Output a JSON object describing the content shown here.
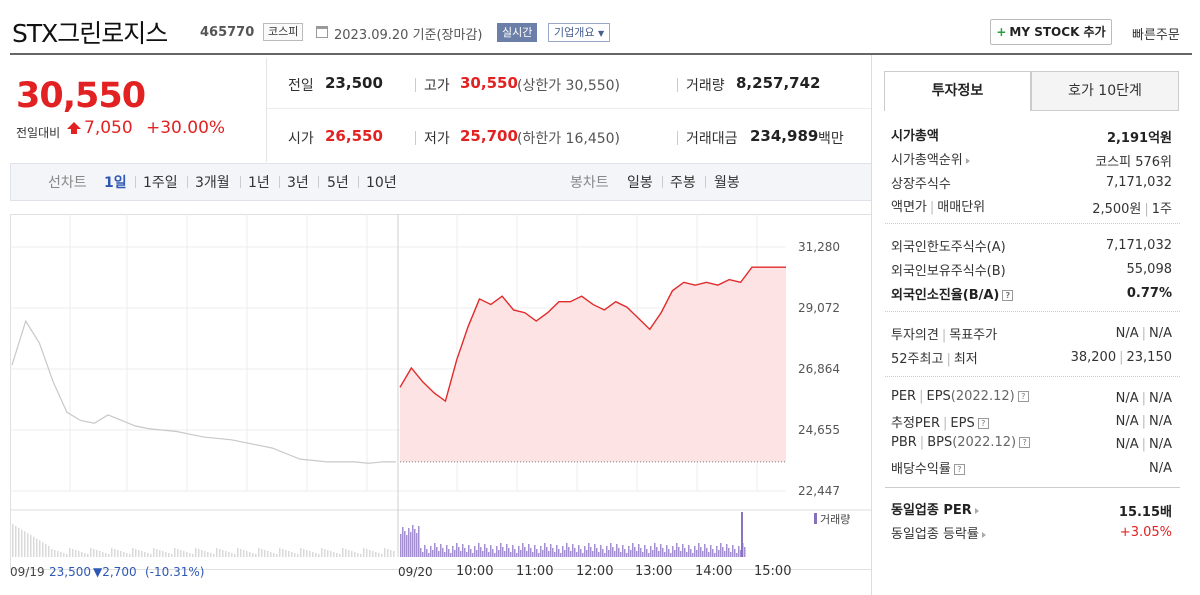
{
  "header": {
    "title": "STX그린로지스",
    "code": "465770",
    "market": "코스피",
    "date_text": "2023.09.20 기준(장마감)",
    "realtime": "실시간",
    "company_info": "기업개요",
    "mystock": "MY STOCK 추가",
    "quick_order": "빠른주문"
  },
  "price": {
    "current": "30,550",
    "change_label": "전일대비",
    "change_amount": "7,050",
    "change_pct": "+30.00%"
  },
  "quote": {
    "prev_label": "전일",
    "prev": "23,500",
    "high_label": "고가",
    "high": "30,550",
    "upper_limit": "(상한가 30,550)",
    "volume_label": "거래량",
    "volume": "8,257,742",
    "open_label": "시가",
    "open": "26,550",
    "low_label": "저가",
    "low": "25,700",
    "lower_limit": "(하한가 16,450)",
    "amount_label": "거래대금",
    "amount": "234,989",
    "amount_unit": "백만"
  },
  "tabs": {
    "line_chart": "선차트",
    "periods": [
      "1일",
      "1주일",
      "3개월",
      "1년",
      "3년",
      "5년",
      "10년"
    ],
    "candle_chart": "봉차트",
    "candles": [
      "일봉",
      "주봉",
      "월봉"
    ]
  },
  "chart_data": {
    "type": "line",
    "y_ticks": [
      "31,280",
      "29,072",
      "26,864",
      "24,655",
      "22,447"
    ],
    "ylim": [
      22447,
      31280
    ],
    "x_labels": [
      "09/20",
      "10:00",
      "11:00",
      "12:00",
      "13:00",
      "14:00",
      "15:00"
    ],
    "prev_day_label": "09/19",
    "prev_day_close": "23,500",
    "prev_day_change": "2,700",
    "prev_day_pct": "(-10.31%)",
    "volume_legend": "거래량",
    "base_price": 23500,
    "prev_series": [
      27000,
      28600,
      27800,
      26400,
      25300,
      25000,
      24900,
      25200,
      25000,
      24800,
      24700,
      24650,
      24600,
      24500,
      24400,
      24350,
      24300,
      24200,
      24100,
      24000,
      23800,
      23600,
      23550,
      23500,
      23500,
      23500,
      23450,
      23500,
      23500
    ],
    "today_series": [
      26200,
      26900,
      26400,
      26000,
      25700,
      27200,
      28400,
      29400,
      29200,
      29500,
      29000,
      28900,
      28600,
      28900,
      29300,
      29300,
      29500,
      29200,
      29000,
      29300,
      29100,
      28700,
      28300,
      28900,
      29700,
      30000,
      29900,
      30000,
      29900,
      30100,
      30000,
      30550,
      30550,
      30550,
      30550
    ]
  },
  "invest": {
    "tab_invest": "투자정보",
    "tab_hoga": "호가 10단계",
    "market_cap_label": "시가총액",
    "market_cap": "2,191억원",
    "rank_label": "시가총액순위",
    "rank": "코스피 576위",
    "shares_label": "상장주식수",
    "shares": "7,171,032",
    "par_label": "액면가",
    "unit_label": "매매단위",
    "par": "2,500원",
    "unit": "1주",
    "foreign_limit_label": "외국인한도주식수(A)",
    "foreign_limit": "7,171,032",
    "foreign_hold_label": "외국인보유주식수(B)",
    "foreign_hold": "55,098",
    "foreign_ratio_label": "외국인소진율(B/A)",
    "foreign_ratio": "0.77%",
    "opinion_label": "투자의견",
    "target_label": "목표주가",
    "opinion": "N/A",
    "target": "N/A",
    "w52_label": "52주최고",
    "w52_low_label": "최저",
    "w52_high": "38,200",
    "w52_low": "23,150",
    "per_label": "PER",
    "eps_label": "EPS",
    "eps_year": "(2022.12)",
    "per": "N/A",
    "eps": "N/A",
    "est_per_label": "추정PER",
    "est_eps_label": "EPS",
    "est_per": "N/A",
    "est_eps": "N/A",
    "pbr_label": "PBR",
    "bps_label": "BPS",
    "bps_year": "(2022.12)",
    "pbr": "N/A",
    "bps": "N/A",
    "div_label": "배당수익률",
    "div": "N/A",
    "peer_per_label": "동일업종 PER",
    "peer_per": "15.15배",
    "peer_chg_label": "동일업종 등락률",
    "peer_chg": "+3.05%"
  }
}
